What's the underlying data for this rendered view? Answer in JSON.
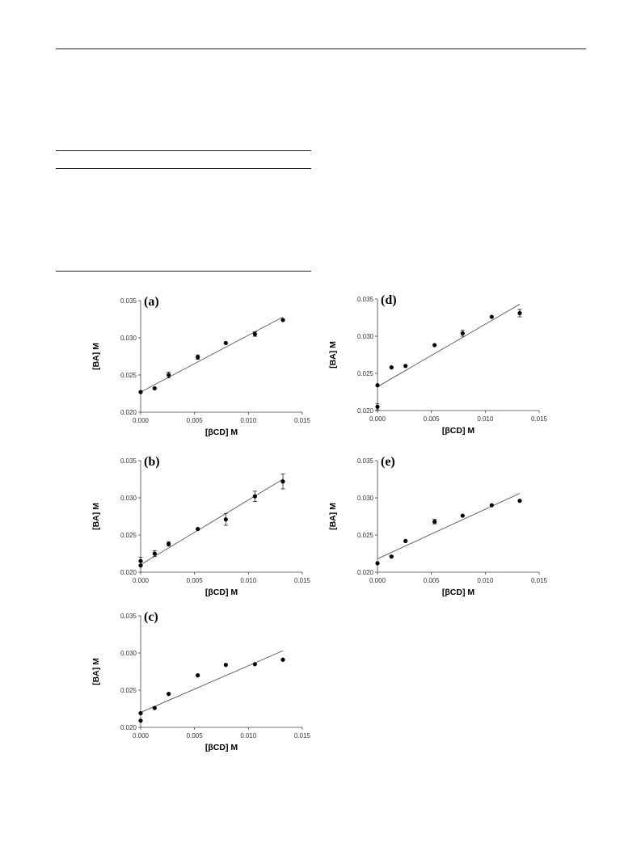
{
  "chart_data": [
    {
      "type": "scatter",
      "panel_label": "(a)",
      "xlabel": "[βCD] M",
      "ylabel": "[BA] M",
      "xlim": [
        0,
        0.015
      ],
      "ylim": [
        0.02,
        0.035
      ],
      "x_ticks": [
        "0.000",
        "0.005",
        "0.010",
        "0.015"
      ],
      "y_ticks": [
        "0.020",
        "0.025",
        "0.030",
        "0.035"
      ],
      "points": [
        {
          "x": 0.0,
          "y": 0.0227,
          "err": 0.0
        },
        {
          "x": 0.0013,
          "y": 0.0232,
          "err": 0.0
        },
        {
          "x": 0.0026,
          "y": 0.025,
          "err": 0.0004
        },
        {
          "x": 0.0053,
          "y": 0.0274,
          "err": 0.0003
        },
        {
          "x": 0.0079,
          "y": 0.0293,
          "err": 0.0
        },
        {
          "x": 0.0106,
          "y": 0.0305,
          "err": 0.0003
        },
        {
          "x": 0.0132,
          "y": 0.0324,
          "err": 0.0
        }
      ],
      "fit": [
        [
          0.0,
          0.0227
        ],
        [
          0.0132,
          0.0328
        ]
      ]
    },
    {
      "type": "scatter",
      "panel_label": "(b)",
      "xlabel": "[βCD] M",
      "ylabel": "[BA] M",
      "xlim": [
        0,
        0.015
      ],
      "ylim": [
        0.02,
        0.035
      ],
      "x_ticks": [
        "0.000",
        "0.005",
        "0.010",
        "0.015"
      ],
      "y_ticks": [
        "0.020",
        "0.025",
        "0.030",
        "0.035"
      ],
      "points": [
        {
          "x": 0.0,
          "y": 0.0209,
          "err": 0.0
        },
        {
          "x": 0.0,
          "y": 0.0215,
          "err": 0.0005
        },
        {
          "x": 0.0013,
          "y": 0.0225,
          "err": 0.0004
        },
        {
          "x": 0.0026,
          "y": 0.0238,
          "err": 0.0003
        },
        {
          "x": 0.0053,
          "y": 0.0258,
          "err": 0.0
        },
        {
          "x": 0.0079,
          "y": 0.0271,
          "err": 0.0008
        },
        {
          "x": 0.0106,
          "y": 0.0302,
          "err": 0.0007
        },
        {
          "x": 0.0132,
          "y": 0.0322,
          "err": 0.001
        }
      ],
      "fit": [
        [
          0.0,
          0.021
        ],
        [
          0.0132,
          0.0325
        ]
      ]
    },
    {
      "type": "scatter",
      "panel_label": "(c)",
      "xlabel": "[βCD] M",
      "ylabel": "[BA] M",
      "xlim": [
        0,
        0.015
      ],
      "ylim": [
        0.02,
        0.035
      ],
      "x_ticks": [
        "0.000",
        "0.005",
        "0.010",
        "0.015"
      ],
      "y_ticks": [
        "0.020",
        "0.025",
        "0.030",
        "0.035"
      ],
      "points": [
        {
          "x": 0.0,
          "y": 0.0209,
          "err": 0.0
        },
        {
          "x": 0.0,
          "y": 0.0219,
          "err": 0.0
        },
        {
          "x": 0.0013,
          "y": 0.0226,
          "err": 0.0
        },
        {
          "x": 0.0026,
          "y": 0.0245,
          "err": 0.0
        },
        {
          "x": 0.0053,
          "y": 0.027,
          "err": 0.0
        },
        {
          "x": 0.0079,
          "y": 0.0284,
          "err": 0.0
        },
        {
          "x": 0.0106,
          "y": 0.0285,
          "err": 0.0
        },
        {
          "x": 0.0132,
          "y": 0.0291,
          "err": 0.0
        }
      ],
      "fit": [
        [
          0.0,
          0.022
        ],
        [
          0.0132,
          0.0303
        ]
      ]
    },
    {
      "type": "scatter",
      "panel_label": "(d)",
      "xlabel": "[βCD] M",
      "ylabel": "[BA] M",
      "xlim": [
        0,
        0.015
      ],
      "ylim": [
        0.02,
        0.035
      ],
      "x_ticks": [
        "0.000",
        "0.005",
        "0.010",
        "0.015"
      ],
      "y_ticks": [
        "0.020",
        "0.025",
        "0.030",
        "0.035"
      ],
      "points": [
        {
          "x": 0.0,
          "y": 0.0205,
          "err": 0.0004
        },
        {
          "x": 0.0,
          "y": 0.0234,
          "err": 0.0
        },
        {
          "x": 0.0013,
          "y": 0.0258,
          "err": 0.0
        },
        {
          "x": 0.0026,
          "y": 0.026,
          "err": 0.0
        },
        {
          "x": 0.0053,
          "y": 0.0288,
          "err": 0.0
        },
        {
          "x": 0.0079,
          "y": 0.0304,
          "err": 0.0004
        },
        {
          "x": 0.0106,
          "y": 0.0326,
          "err": 0.0
        },
        {
          "x": 0.0132,
          "y": 0.0331,
          "err": 0.0005
        }
      ],
      "fit": [
        [
          0.0,
          0.0232
        ],
        [
          0.0132,
          0.0343
        ]
      ]
    },
    {
      "type": "scatter",
      "panel_label": "(e)",
      "xlabel": "[βCD] M",
      "ylabel": "[BA] M",
      "xlim": [
        0,
        0.015
      ],
      "ylim": [
        0.02,
        0.035
      ],
      "x_ticks": [
        "0.000",
        "0.005",
        "0.010",
        "0.015"
      ],
      "y_ticks": [
        "0.020",
        "0.025",
        "0.030",
        "0.035"
      ],
      "points": [
        {
          "x": 0.0,
          "y": 0.0212,
          "err": 0.0
        },
        {
          "x": 0.0013,
          "y": 0.0221,
          "err": 0.0
        },
        {
          "x": 0.0026,
          "y": 0.0242,
          "err": 0.0
        },
        {
          "x": 0.0053,
          "y": 0.0268,
          "err": 0.0003
        },
        {
          "x": 0.0079,
          "y": 0.0276,
          "err": 0.0
        },
        {
          "x": 0.0106,
          "y": 0.029,
          "err": 0.0
        },
        {
          "x": 0.0132,
          "y": 0.0296,
          "err": 0.0
        }
      ],
      "fit": [
        [
          0.0,
          0.0218
        ],
        [
          0.0132,
          0.0306
        ]
      ]
    }
  ]
}
